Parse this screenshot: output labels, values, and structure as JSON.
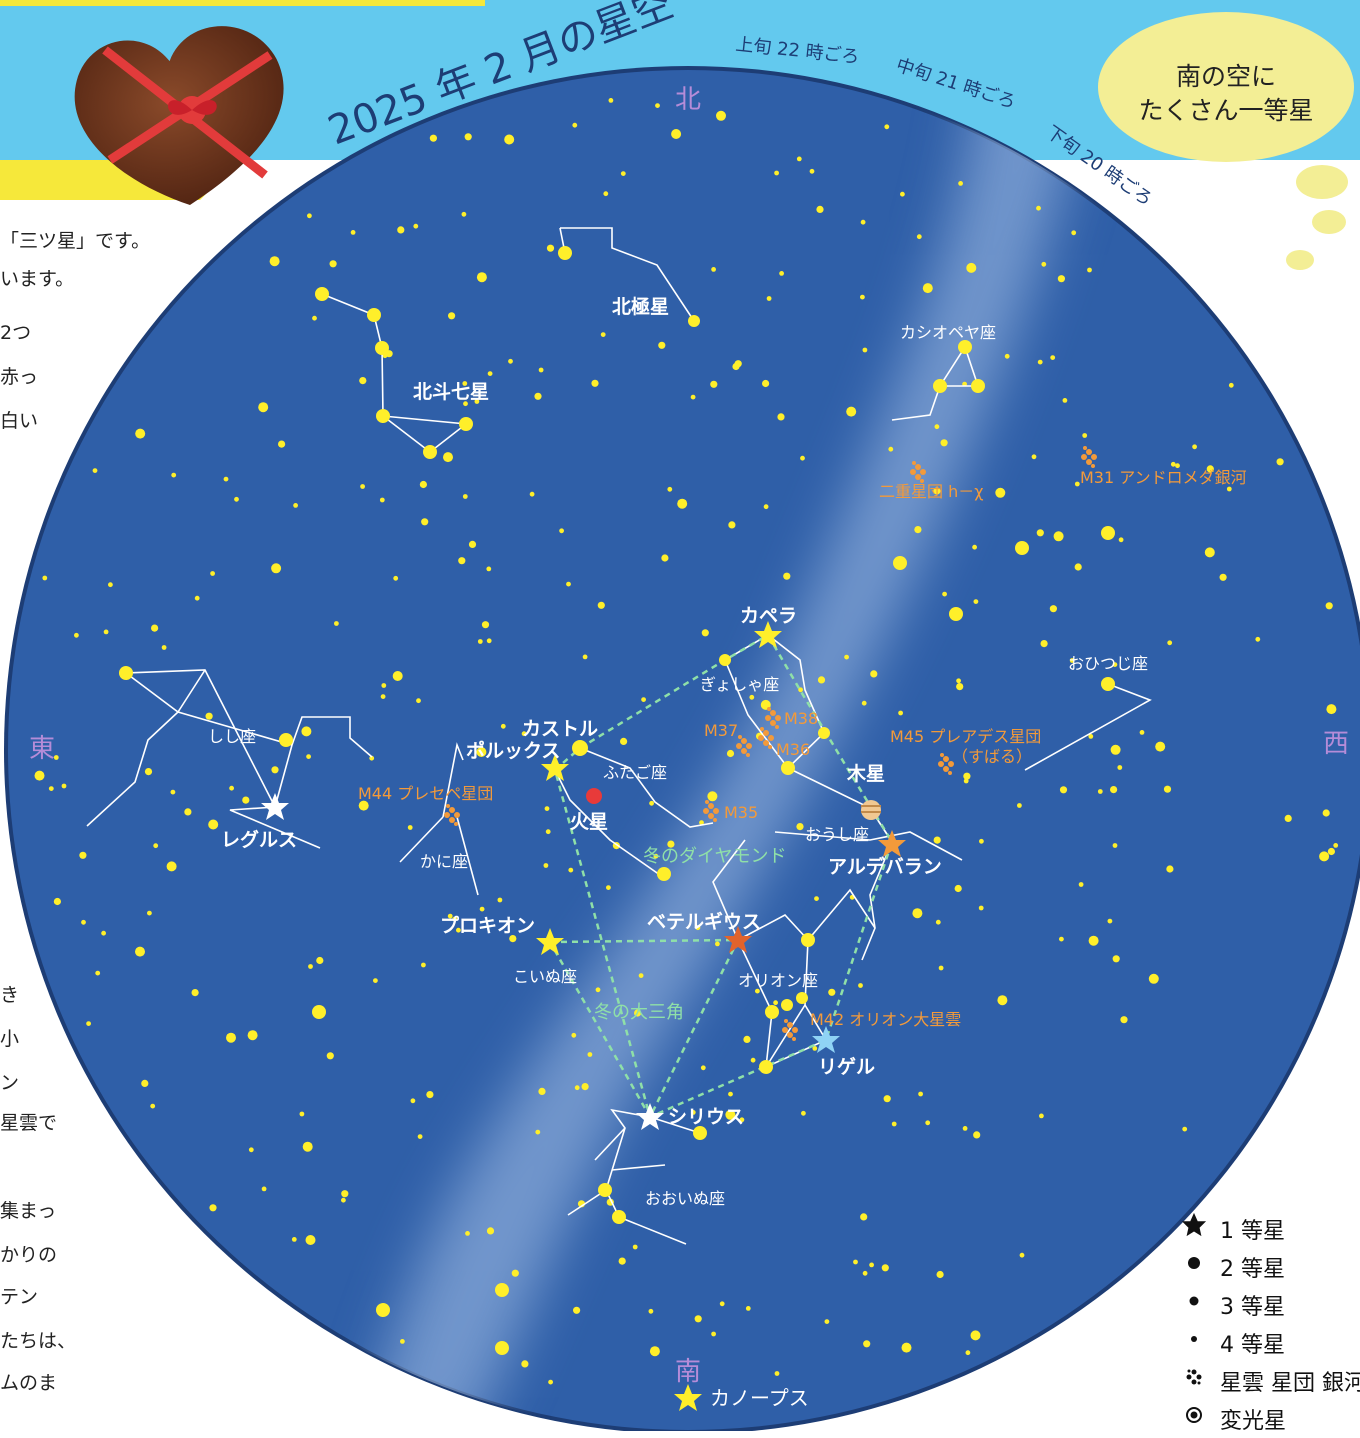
{
  "header": {
    "title": "2025 年 2 月の星空",
    "time_early": "上旬 22 時ごろ",
    "time_mid": "中旬 21 時ごろ",
    "time_late": "下旬 20 時ごろ"
  },
  "bubble": {
    "line1": "南の空に",
    "line2": "たくさん一等星"
  },
  "directions": {
    "north": "北",
    "south": "南",
    "east": "東",
    "west": "西"
  },
  "side_text": {
    "lines_top": [
      "「三ツ星」です。",
      "います。",
      "2つ",
      "赤っ",
      "白い"
    ],
    "lines_bottom": [
      "き",
      "小",
      "ン",
      "星雲で",
      "集まっ",
      "かりの",
      "テン",
      "たちは、",
      "ムのま"
    ]
  },
  "stars": {
    "capella": "カペラ",
    "castor": "カストル",
    "pollux": "ポルックス",
    "procyon": "プロキオン",
    "betelgeuse": "ベテルギウス",
    "rigel": "リゲル",
    "sirius": "シリウス",
    "aldebaran": "アルデバラン",
    "regulus": "レグルス",
    "canopus": "カノープス",
    "polaris": "北極星",
    "big_dipper": "北斗七星"
  },
  "planets": {
    "mars": "火星",
    "jupiter": "木星"
  },
  "constellations": {
    "cassiopeia": "カシオペヤ座",
    "auriga": "ぎょしゃ座",
    "gemini": "ふたご座",
    "taurus": "おうし座",
    "orion": "オリオン座",
    "canis_minor": "こいぬ座",
    "canis_major": "おおいぬ座",
    "leo": "しし座",
    "cancer": "かに座",
    "aries": "おひつじ座"
  },
  "deep_sky": {
    "m31": "M31 アンドロメダ銀河",
    "double_cluster": "二重星団 h－χ",
    "m45": "M45 プレアデス星団",
    "m45_sub": "（すばる）",
    "m44": "M44 プレセペ星団",
    "m35": "M35",
    "m36": "M36",
    "m37": "M37",
    "m38": "M38",
    "m42": "M42 オリオン大星雲"
  },
  "asterisms": {
    "winter_diamond": "冬のダイヤモンド",
    "winter_triangle": "冬の大三角"
  },
  "legend": {
    "first_mag": "1 等星",
    "second_mag": "2 等星",
    "third_mag": "3 等星",
    "fourth_mag": "4 等星",
    "nebula": "星雲 星団 銀河",
    "variable": "変光星"
  },
  "colors": {
    "sky": "#2f5fa8",
    "banner": "#63c9ee",
    "star": "#ffef2a",
    "label_orange": "#f39a3a",
    "asterism_green": "#8fe0a8",
    "direction": "#b58cd8",
    "bubble": "#f3ee95"
  }
}
